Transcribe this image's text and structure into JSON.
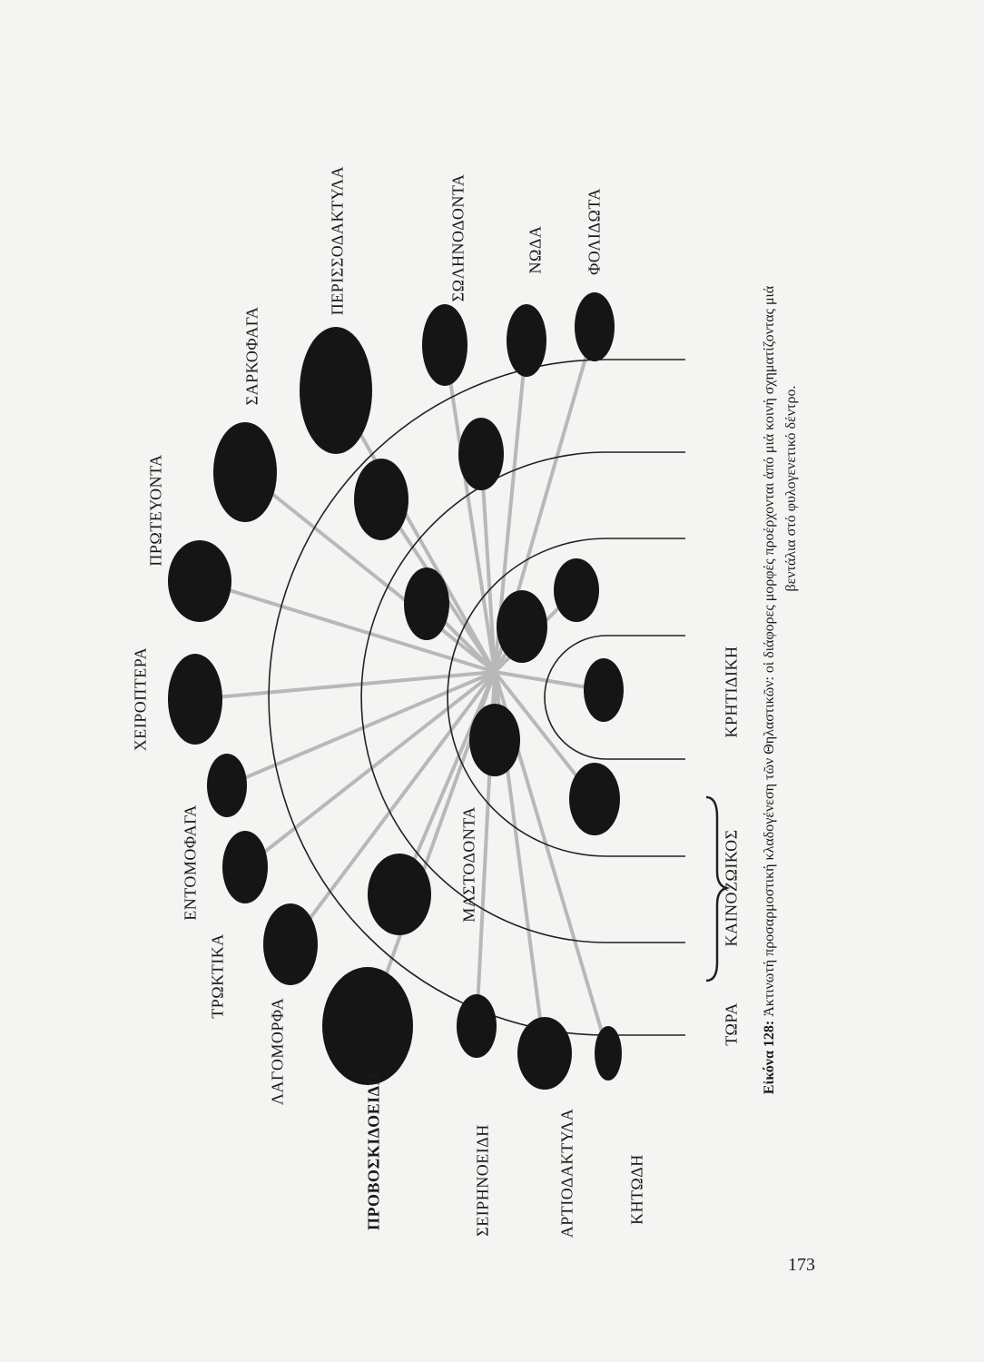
{
  "labels": {
    "perissodactyla": "ΠΕΡΙΣΣΟΔΑΚΤΥΛΑ",
    "sarkofaga": "ΣΑΡΚΟΦΑΓΑ",
    "solinodonta": "ΣΩΛΗΝΟΔΟΝΤΑ",
    "noda": "ΝΩΔΑ",
    "folidota": "ΦΟΛΙΔΩΤΑ",
    "proteuonta": "ΠΡΩΤΕΥΟΝΤΑ",
    "cheiroptera": "ΧΕΙΡΟΠΤΕΡΑ",
    "entomofaga": "ΕΝΤΟΜΟΦΑΓΑ",
    "troktika": "ΤΡΩΚΤΙΚΑ",
    "lagomorfa": "ΛΑΓΟΜΟΡΦΑ",
    "mastodonta": "ΜΑΣΤΟΔΟΝΤΑ",
    "proboskidoeidi": "ΠΡΟΒΟΣΚΙΔΟΕΙΔΗ",
    "seirinoeidi": "ΣΕΙΡΗΝΟΕΙΔΗ",
    "artiodactyla": "ΑΡΤΙΟΔΑΚΤΥΛΑ",
    "ketodi": "ΚΗΤΩΔΗ"
  },
  "timeline": {
    "now": "ΤΩΡΑ",
    "cenozoic": "ΚΑΙΝΟΖΩΙΚΟΣ",
    "cretaceous": "ΚΡΗΤΙΔΙΚΗ"
  },
  "caption": {
    "figure": "Εἰκόνα 128:",
    "line1": "Ἀκτινωτή προσαρμοστική κλαδογένεση τῶν Θηλαστικῶν: οἱ διάφορες μορφές προέρχονται ἀπό μιά κοινή σχηματίζοντας μιά",
    "line2": "βεντάλια στό φυλογενετικό δέντρο."
  },
  "page_number": "173"
}
